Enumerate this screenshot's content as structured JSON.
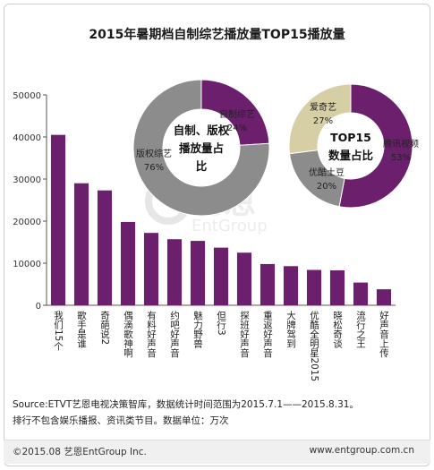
{
  "chart_data": [
    {
      "type": "bar",
      "title": "2015年暑期档自制综艺播放量TOP15播放量",
      "categories": [
        "我们15个",
        "歌手是谁",
        "奇葩说2",
        "偶滴歌神啊",
        "有料好声音",
        "约吧好声音",
        "魅力野兽",
        "但行3",
        "探班好声音",
        "重返好声音",
        "大牌驾到",
        "优酷全明星2015",
        "晓松奇谈",
        "流行之王",
        "好声音上传"
      ],
      "values": [
        40500,
        29000,
        27300,
        19800,
        17200,
        15700,
        15300,
        13700,
        12500,
        9800,
        9300,
        8400,
        8300,
        5400,
        3800
      ],
      "ylim": [
        0,
        50000
      ],
      "yticks": [
        0,
        10000,
        20000,
        30000,
        40000,
        50000
      ],
      "grid": false,
      "color": "#6b1f6d"
    },
    {
      "type": "pie",
      "subtype": "donut",
      "center_label": "自制、版权播放量占比",
      "slices": [
        {
          "label": "自制综艺",
          "value": 24,
          "pct": "24%",
          "color": "#6b1f6d"
        },
        {
          "label": "版权综艺",
          "value": 76,
          "pct": "76%",
          "color": "#8c8c8c"
        }
      ]
    },
    {
      "type": "pie",
      "subtype": "donut",
      "center_label": "TOP15数量占比",
      "slices": [
        {
          "label": "腾讯视频",
          "value": 53,
          "pct": "53%",
          "color": "#6b1f6d"
        },
        {
          "label": "优酷土豆",
          "value": 20,
          "pct": "20%",
          "color": "#8c8c8c"
        },
        {
          "label": "爱奇艺",
          "value": 27,
          "pct": "27%",
          "color": "#d6cfa5"
        }
      ]
    }
  ],
  "watermark": {
    "cn": "艺恩",
    "en": "EntGroup"
  },
  "source_text": "Source:ETVT艺恩电视决策智库，数据统计时间范围为2015.7.1——2015.8.31。",
  "note_text": "排行不包含娱乐播报、资讯类节目。数据单位：万次",
  "footer": {
    "copyright": "©2015.08 艺恩EntGroup Inc.",
    "website": "www.entgroup.com.cn"
  }
}
